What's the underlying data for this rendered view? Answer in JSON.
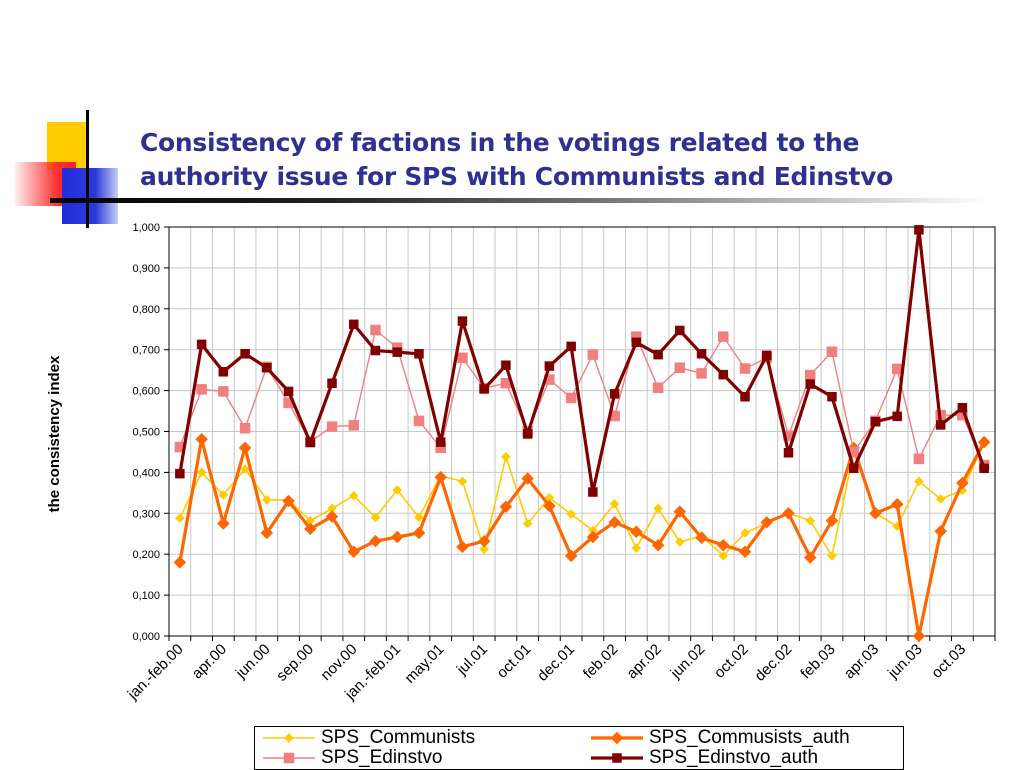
{
  "page": {
    "title_line1": "Consistency of factions in the votings related to the",
    "title_line2": "authority issue for SPS with Communists and Edinstvo"
  },
  "chart_data": {
    "type": "line",
    "title": "Consistency of factions in the votings related to the authority issue for SPS with Communists and Edinstvo",
    "ylabel": "the consistency index",
    "xlabel": "",
    "ylim": [
      0,
      1
    ],
    "y_ticks": [
      "0,000",
      "0,100",
      "0,200",
      "0,300",
      "0,400",
      "0,500",
      "0,600",
      "0,700",
      "0,800",
      "0,900",
      "1,000"
    ],
    "x_ticks": [
      "jan.-feb.00",
      "apr.00",
      "jun.00",
      "sep.00",
      "nov.00",
      "jan.-feb.01",
      "may.01",
      "jul.01",
      "oct.01",
      "dec.01",
      "feb.02",
      "apr.02",
      "jun.02",
      "oct.02",
      "dec.02",
      "feb.03",
      "apr.03",
      "jun.03",
      "oct.03"
    ],
    "grid": true,
    "legend_position": "bottom",
    "series": [
      {
        "name": "SPS_Communists",
        "color": "#ffcc00",
        "marker": "diamond",
        "values": [
          0.288,
          0.4,
          0.345,
          0.408,
          0.333,
          0.333,
          0.282,
          0.312,
          0.343,
          0.29,
          0.357,
          0.29,
          0.392,
          0.378,
          0.212,
          0.438,
          0.275,
          0.338,
          0.298,
          0.258,
          0.323,
          0.215,
          0.312,
          0.23,
          0.245,
          0.196,
          0.252,
          0.275,
          0.3,
          0.282,
          0.196,
          0.45,
          0.3,
          0.268,
          0.378,
          0.335,
          0.356,
          0.472
        ]
      },
      {
        "name": "SPS_Commusists_auth",
        "color": "#ff6600",
        "marker": "diamond",
        "values": [
          0.18,
          0.481,
          0.275,
          0.46,
          0.252,
          0.33,
          0.262,
          0.292,
          0.206,
          0.232,
          0.242,
          0.252,
          0.388,
          0.218,
          0.232,
          0.316,
          0.385,
          0.318,
          0.196,
          0.242,
          0.278,
          0.255,
          0.222,
          0.304,
          0.24,
          0.222,
          0.206,
          0.278,
          0.3,
          0.192,
          0.282,
          0.46,
          0.3,
          0.322,
          0.0,
          0.256,
          0.374,
          0.474
        ]
      },
      {
        "name": "SPS_Edinstvo",
        "color": "#f08080",
        "marker": "square",
        "values": [
          0.462,
          0.603,
          0.598,
          0.508,
          0.658,
          0.57,
          0.475,
          0.512,
          0.515,
          0.748,
          0.705,
          0.526,
          0.46,
          0.68,
          0.606,
          0.618,
          0.5,
          0.627,
          0.582,
          0.688,
          0.538,
          0.732,
          0.607,
          0.656,
          0.642,
          0.732,
          0.654,
          0.68,
          0.49,
          0.638,
          0.695,
          0.45,
          0.526,
          0.653,
          0.433,
          0.54,
          0.54,
          0.418
        ]
      },
      {
        "name": "SPS_Edinstvo_auth",
        "color": "#800000",
        "marker": "square",
        "values": [
          0.397,
          0.713,
          0.646,
          0.69,
          0.656,
          0.598,
          0.473,
          0.618,
          0.762,
          0.698,
          0.694,
          0.69,
          0.474,
          0.77,
          0.604,
          0.662,
          0.494,
          0.66,
          0.708,
          0.352,
          0.592,
          0.718,
          0.688,
          0.747,
          0.69,
          0.639,
          0.585,
          0.686,
          0.448,
          0.616,
          0.585,
          0.41,
          0.524,
          0.537,
          0.993,
          0.516,
          0.558,
          0.41
        ]
      }
    ]
  }
}
